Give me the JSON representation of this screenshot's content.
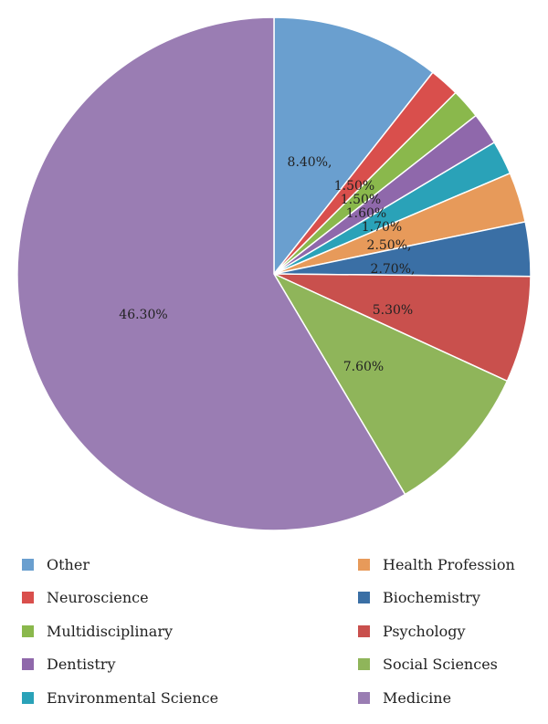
{
  "chart_data": {
    "type": "pie",
    "start_angle_deg": 0,
    "direction": "clockwise",
    "slices": [
      {
        "name": "Other",
        "value": 8.4,
        "label": "8.40%,",
        "color": "#6a9fcf"
      },
      {
        "name": "Neuroscience",
        "value": 1.5,
        "label": "1.50%",
        "color": "#d94f4c"
      },
      {
        "name": "Multidisciplinary",
        "value": 1.5,
        "label": "1.50%",
        "color": "#8ab84c"
      },
      {
        "name": "Dentistry",
        "value": 1.6,
        "label": "1.60%",
        "color": "#8f68ab"
      },
      {
        "name": "Environmental Science",
        "value": 1.7,
        "label": "1.70%",
        "color": "#2aa2b8"
      },
      {
        "name": "Health Profession",
        "value": 2.5,
        "label": "2.50%,",
        "color": "#e79a5a"
      },
      {
        "name": "Biochemistry",
        "value": 2.7,
        "label": "2.70%,",
        "color": "#3a6fa5"
      },
      {
        "name": "Psychology",
        "value": 5.3,
        "label": "5.30%",
        "color": "#c9504d"
      },
      {
        "name": "Social Sciences",
        "value": 7.6,
        "label": "7.60%",
        "color": "#8fb55a"
      },
      {
        "name": "Medicine",
        "value": 46.3,
        "label": "46.30%",
        "color": "#9a7db3"
      }
    ],
    "legend": {
      "placement": "bottom",
      "left": [
        "Other",
        "Neuroscience",
        "Multidisciplinary",
        "Dentistry",
        "Environmental Science"
      ],
      "right": [
        "Health Profession",
        "Biochemistry",
        "Psychology",
        "Social Sciences",
        "Medicine"
      ]
    }
  }
}
